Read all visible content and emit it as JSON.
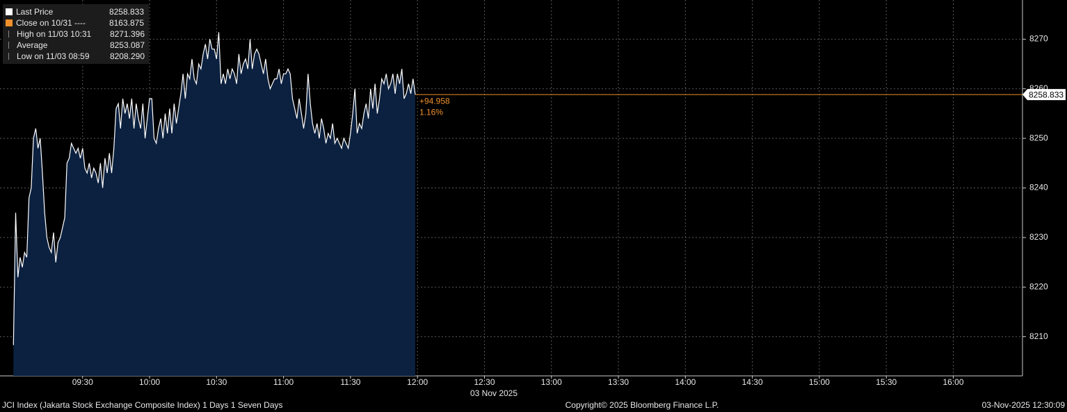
{
  "chart_data": {
    "type": "area",
    "legend": [
      {
        "label": "Last Price",
        "value": "8258.833",
        "color": "#ffffff"
      },
      {
        "label": "Close on 10/31 ----",
        "value": "8163.875",
        "color": "#f0902a"
      },
      {
        "label": "High on 11/03 10:31",
        "value": "8271.396"
      },
      {
        "label": "Average",
        "value": "8253.087"
      },
      {
        "label": "Low on 11/03 08:59",
        "value": "8208.290"
      }
    ],
    "x": [
      "08:59",
      "09:00",
      "09:01",
      "09:02",
      "09:03",
      "09:04",
      "09:05",
      "09:06",
      "09:07",
      "09:08",
      "09:09",
      "09:10",
      "09:11",
      "09:12",
      "09:13",
      "09:14",
      "09:15",
      "09:16",
      "09:17",
      "09:18",
      "09:19",
      "09:20",
      "09:21",
      "09:22",
      "09:23",
      "09:24",
      "09:25",
      "09:26",
      "09:27",
      "09:28",
      "09:29",
      "09:30",
      "09:31",
      "09:32",
      "09:33",
      "09:34",
      "09:35",
      "09:36",
      "09:37",
      "09:38",
      "09:39",
      "09:40",
      "09:41",
      "09:42",
      "09:43",
      "09:44",
      "09:45",
      "09:46",
      "09:47",
      "09:48",
      "09:49",
      "09:50",
      "09:51",
      "09:52",
      "09:53",
      "09:54",
      "09:55",
      "09:56",
      "09:57",
      "09:58",
      "09:59",
      "10:00",
      "10:01",
      "10:02",
      "10:03",
      "10:04",
      "10:05",
      "10:06",
      "10:07",
      "10:08",
      "10:09",
      "10:10",
      "10:11",
      "10:12",
      "10:13",
      "10:14",
      "10:15",
      "10:16",
      "10:17",
      "10:18",
      "10:19",
      "10:20",
      "10:21",
      "10:22",
      "10:23",
      "10:24",
      "10:25",
      "10:26",
      "10:27",
      "10:28",
      "10:29",
      "10:30",
      "10:31",
      "10:32",
      "10:33",
      "10:34",
      "10:35",
      "10:36",
      "10:37",
      "10:38",
      "10:39",
      "10:40",
      "10:41",
      "10:42",
      "10:43",
      "10:44",
      "10:45",
      "10:46",
      "10:47",
      "10:48",
      "10:49",
      "10:50",
      "10:51",
      "10:52",
      "10:53",
      "10:54",
      "10:55",
      "10:56",
      "10:57",
      "10:58",
      "10:59",
      "11:00",
      "11:01",
      "11:02",
      "11:03",
      "11:04",
      "11:05",
      "11:06",
      "11:07",
      "11:08",
      "11:09",
      "11:10",
      "11:11",
      "11:12",
      "11:13",
      "11:14",
      "11:15",
      "11:16",
      "11:17",
      "11:18",
      "11:19",
      "11:20",
      "11:21",
      "11:22",
      "11:23",
      "11:24",
      "11:25",
      "11:26",
      "11:27",
      "11:28",
      "11:29",
      "11:30",
      "11:31",
      "11:32",
      "11:33",
      "11:34",
      "11:35",
      "11:36",
      "11:37",
      "11:38",
      "11:39",
      "11:40",
      "11:41",
      "11:42",
      "11:43",
      "11:44",
      "11:45",
      "11:46",
      "11:47",
      "11:48",
      "11:49",
      "11:50",
      "11:51",
      "11:52",
      "11:53",
      "11:54",
      "11:55",
      "11:56",
      "11:57",
      "11:58",
      "11:59"
    ],
    "series": [
      {
        "name": "Last Price",
        "color": "#ffffff",
        "fill": "#0c2140",
        "values": [
          8208.29,
          8235,
          8222,
          8226,
          8224,
          8227,
          8226,
          8238,
          8240,
          8250,
          8252,
          8248,
          8250,
          8243,
          8235,
          8230,
          8228,
          8227,
          8231,
          8225,
          8229,
          8230,
          8232,
          8234,
          8245,
          8246,
          8249,
          8248,
          8247,
          8248,
          8246,
          8248,
          8244,
          8243,
          8245,
          8242,
          8244,
          8243,
          8241,
          8245,
          8240,
          8246,
          8243,
          8247,
          8243,
          8248,
          8256,
          8257,
          8252,
          8258,
          8255,
          8257,
          8254,
          8258,
          8252,
          8257,
          8254,
          8252,
          8257,
          8250,
          8254,
          8258,
          8258,
          8250,
          8249,
          8252,
          8254,
          8250,
          8255,
          8251,
          8256,
          8251,
          8257,
          8253,
          8256,
          8259,
          8263,
          8258,
          8263,
          8262,
          8266,
          8262,
          8261,
          8265,
          8264,
          8267,
          8269,
          8266,
          8270,
          8268,
          8268,
          8266,
          8271.396,
          8261,
          8263,
          8261,
          8264,
          8262,
          8264,
          8263,
          8261,
          8267,
          8263,
          8265,
          8266,
          8264,
          8270,
          8264,
          8267,
          8268,
          8267,
          8265,
          8263,
          8266,
          8262,
          8260,
          8261,
          8262,
          8262,
          8264,
          8261,
          8263,
          8263,
          8264,
          8263,
          8258,
          8256,
          8254,
          8258,
          8255,
          8252,
          8255,
          8263,
          8257,
          8253,
          8251,
          8253,
          8250,
          8254,
          8252,
          8249,
          8251,
          8250,
          8253,
          8249,
          8250,
          8249,
          8248,
          8250,
          8249,
          8248,
          8251,
          8255,
          8260,
          8251,
          8253,
          8252,
          8255,
          8257,
          8254,
          8260,
          8256,
          8261,
          8255,
          8258,
          8262,
          8261,
          8263,
          8260,
          8261,
          8263,
          8259,
          8263,
          8261,
          8264,
          8258,
          8259,
          8261,
          8259,
          8262,
          8258.833
        ]
      }
    ],
    "last_price": 8258.833,
    "last_price_color": "#f0902a",
    "change": "+94.958",
    "change_pct": "1.16%",
    "xlim": [
      "08:53",
      "16:31"
    ],
    "xticks": [
      "09:30",
      "10:00",
      "10:30",
      "11:00",
      "11:30",
      "12:00",
      "12:30",
      "13:00",
      "13:30",
      "14:00",
      "14:30",
      "15:00",
      "15:30",
      "16:00"
    ],
    "x_label": "03 Nov 2025",
    "ylim": [
      8202.1,
      8277.9
    ],
    "yticks": [
      8210,
      8220,
      8230,
      8240,
      8250,
      8260,
      8270
    ],
    "grid": true,
    "footer_left": "JCI Index (Jakarta Stock Exchange Composite Index) 1 Days 1 Seven Days",
    "footer_center": "Copyright© 2025 Bloomberg Finance L.P.",
    "footer_right": "03-Nov-2025 12:30:09"
  }
}
